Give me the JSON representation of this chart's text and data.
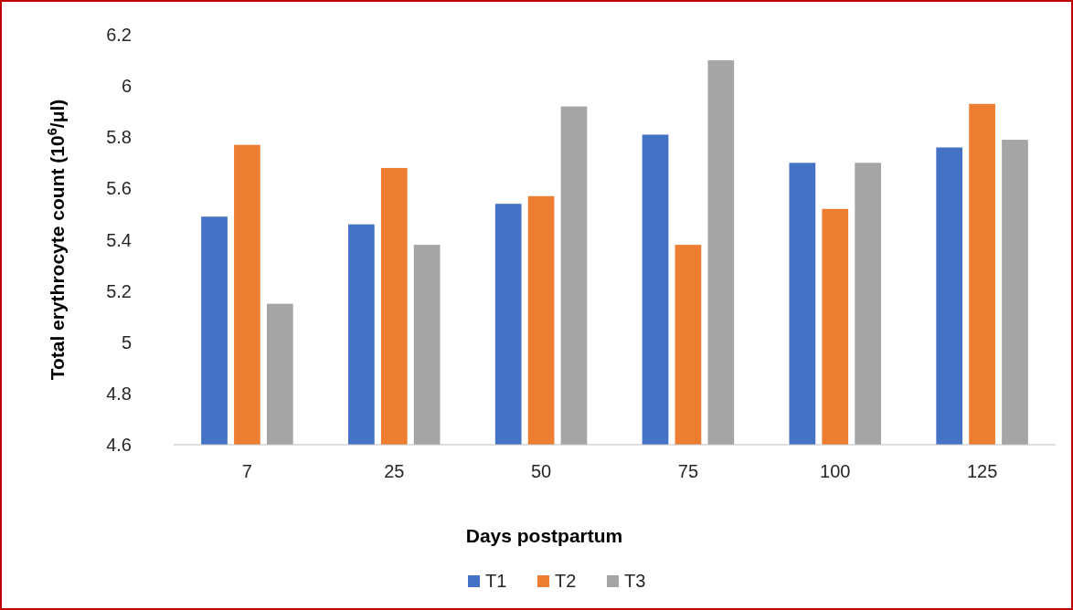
{
  "chart_data": {
    "type": "bar",
    "xlabel": "Days postpartum",
    "ylabel": "Total erythrocyte count (10$^{6}$/μl)",
    "categories": [
      "7",
      "25",
      "50",
      "75",
      "100",
      "125"
    ],
    "series": [
      {
        "name": "T1",
        "color": "#4472c4",
        "values": [
          5.49,
          5.46,
          5.54,
          5.81,
          5.7,
          5.76
        ]
      },
      {
        "name": "T2",
        "color": "#ed7d31",
        "values": [
          5.77,
          5.68,
          5.57,
          5.38,
          5.52,
          5.93
        ]
      },
      {
        "name": "T3",
        "color": "#a5a5a5",
        "values": [
          5.15,
          5.38,
          5.92,
          6.1,
          5.7,
          5.79
        ]
      }
    ],
    "ylim": [
      4.6,
      6.2
    ],
    "yticks": [
      4.6,
      4.8,
      5,
      5.2,
      5.4,
      5.6,
      5.8,
      6,
      6.2
    ],
    "grid": false,
    "legend": "bottom"
  }
}
